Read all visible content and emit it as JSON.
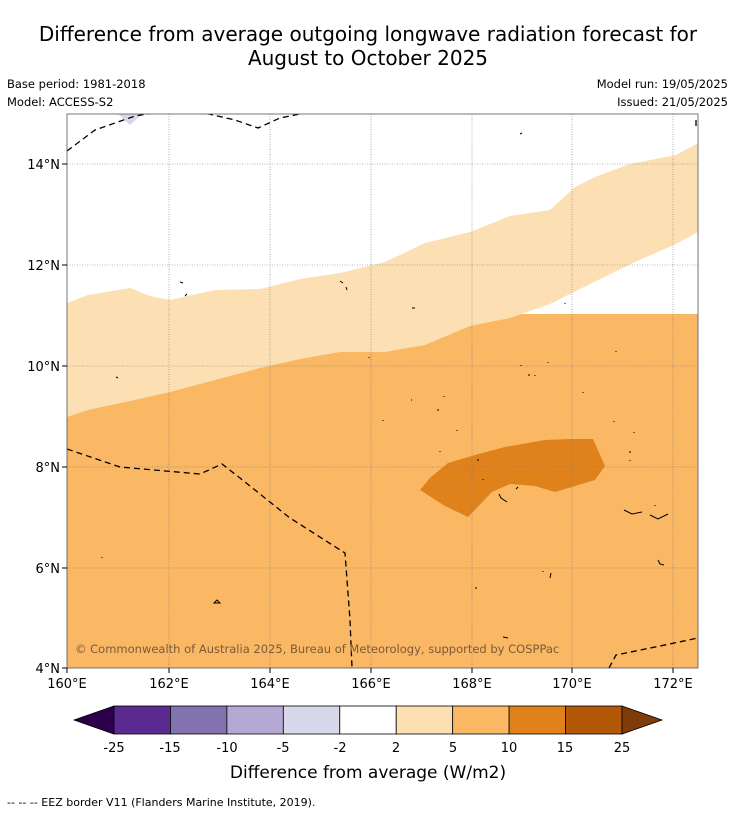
{
  "title": {
    "line1": "Difference from average outgoing longwave radiation forecast for",
    "line2": "August to October 2025"
  },
  "meta": {
    "base_period": "Base period: 1981-2018",
    "model": "Model: ACCESS-S2",
    "model_run": "Model run: 19/05/2025",
    "issued": "Issued: 21/05/2025"
  },
  "map": {
    "lon_labels": [
      "160°E",
      "162°E",
      "164°E",
      "166°E",
      "168°E",
      "170°E",
      "172°E"
    ],
    "lat_labels": [
      "14°N",
      "12°N",
      "10°N",
      "8°N",
      "6°N",
      "4°N"
    ],
    "lon_range": [
      160,
      172.5
    ],
    "lat_range": [
      4,
      15.1
    ],
    "copyright": "© Commonwealth of Australia 2025, Bureau of Meteorology, supported by COSPPac",
    "colors": {
      "bin_2_5": "#fce0b4",
      "bin_5_10": "#fab764",
      "bin_10_15": "#e0821b",
      "bin_neg_2_neg_5": "#d8d8ea"
    }
  },
  "colorbar": {
    "ticks": [
      "-25",
      "-15",
      "-10",
      "-5",
      "-2",
      "2",
      "5",
      "10",
      "15",
      "25"
    ],
    "colors": [
      "#5a2a90",
      "#8372b0",
      "#b3a9d3",
      "#d8d8ea",
      "#ffffff",
      "#fce0b4",
      "#fab764",
      "#e0821b",
      "#b35806"
    ],
    "under_color": "#2d004b",
    "over_color": "#7f3b08",
    "label": "Difference from average (W/m2)"
  },
  "footnote": "-- -- -- EEZ border V11 (Flanders Marine Institute, 2019)."
}
